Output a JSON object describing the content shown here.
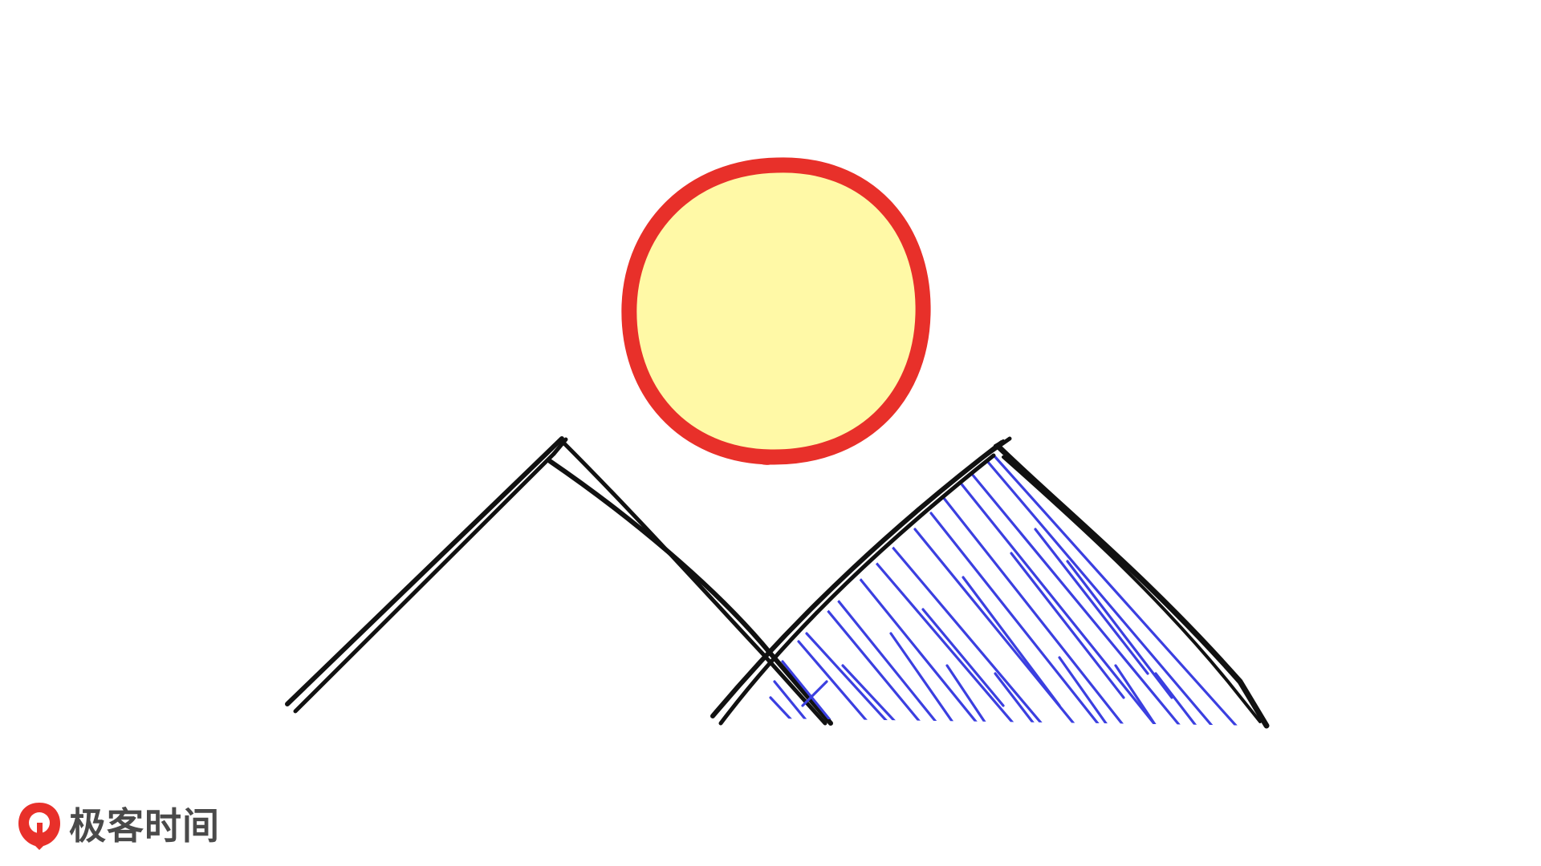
{
  "scene": {
    "description_elements": [
      "sun",
      "left-mountain",
      "right-mountain"
    ],
    "colors": {
      "background": "#ffffff",
      "sun_fill": "#fff9a6",
      "sun_outline": "#e8302a",
      "mountain_outline": "#111111",
      "hatching": "#3b3fe0"
    }
  },
  "watermark": {
    "brand": "极客时间",
    "logo_icon": "geektime-logo-icon",
    "colors": {
      "logo_red": "#e8302a",
      "text_gray": "#4a4a4a"
    }
  }
}
